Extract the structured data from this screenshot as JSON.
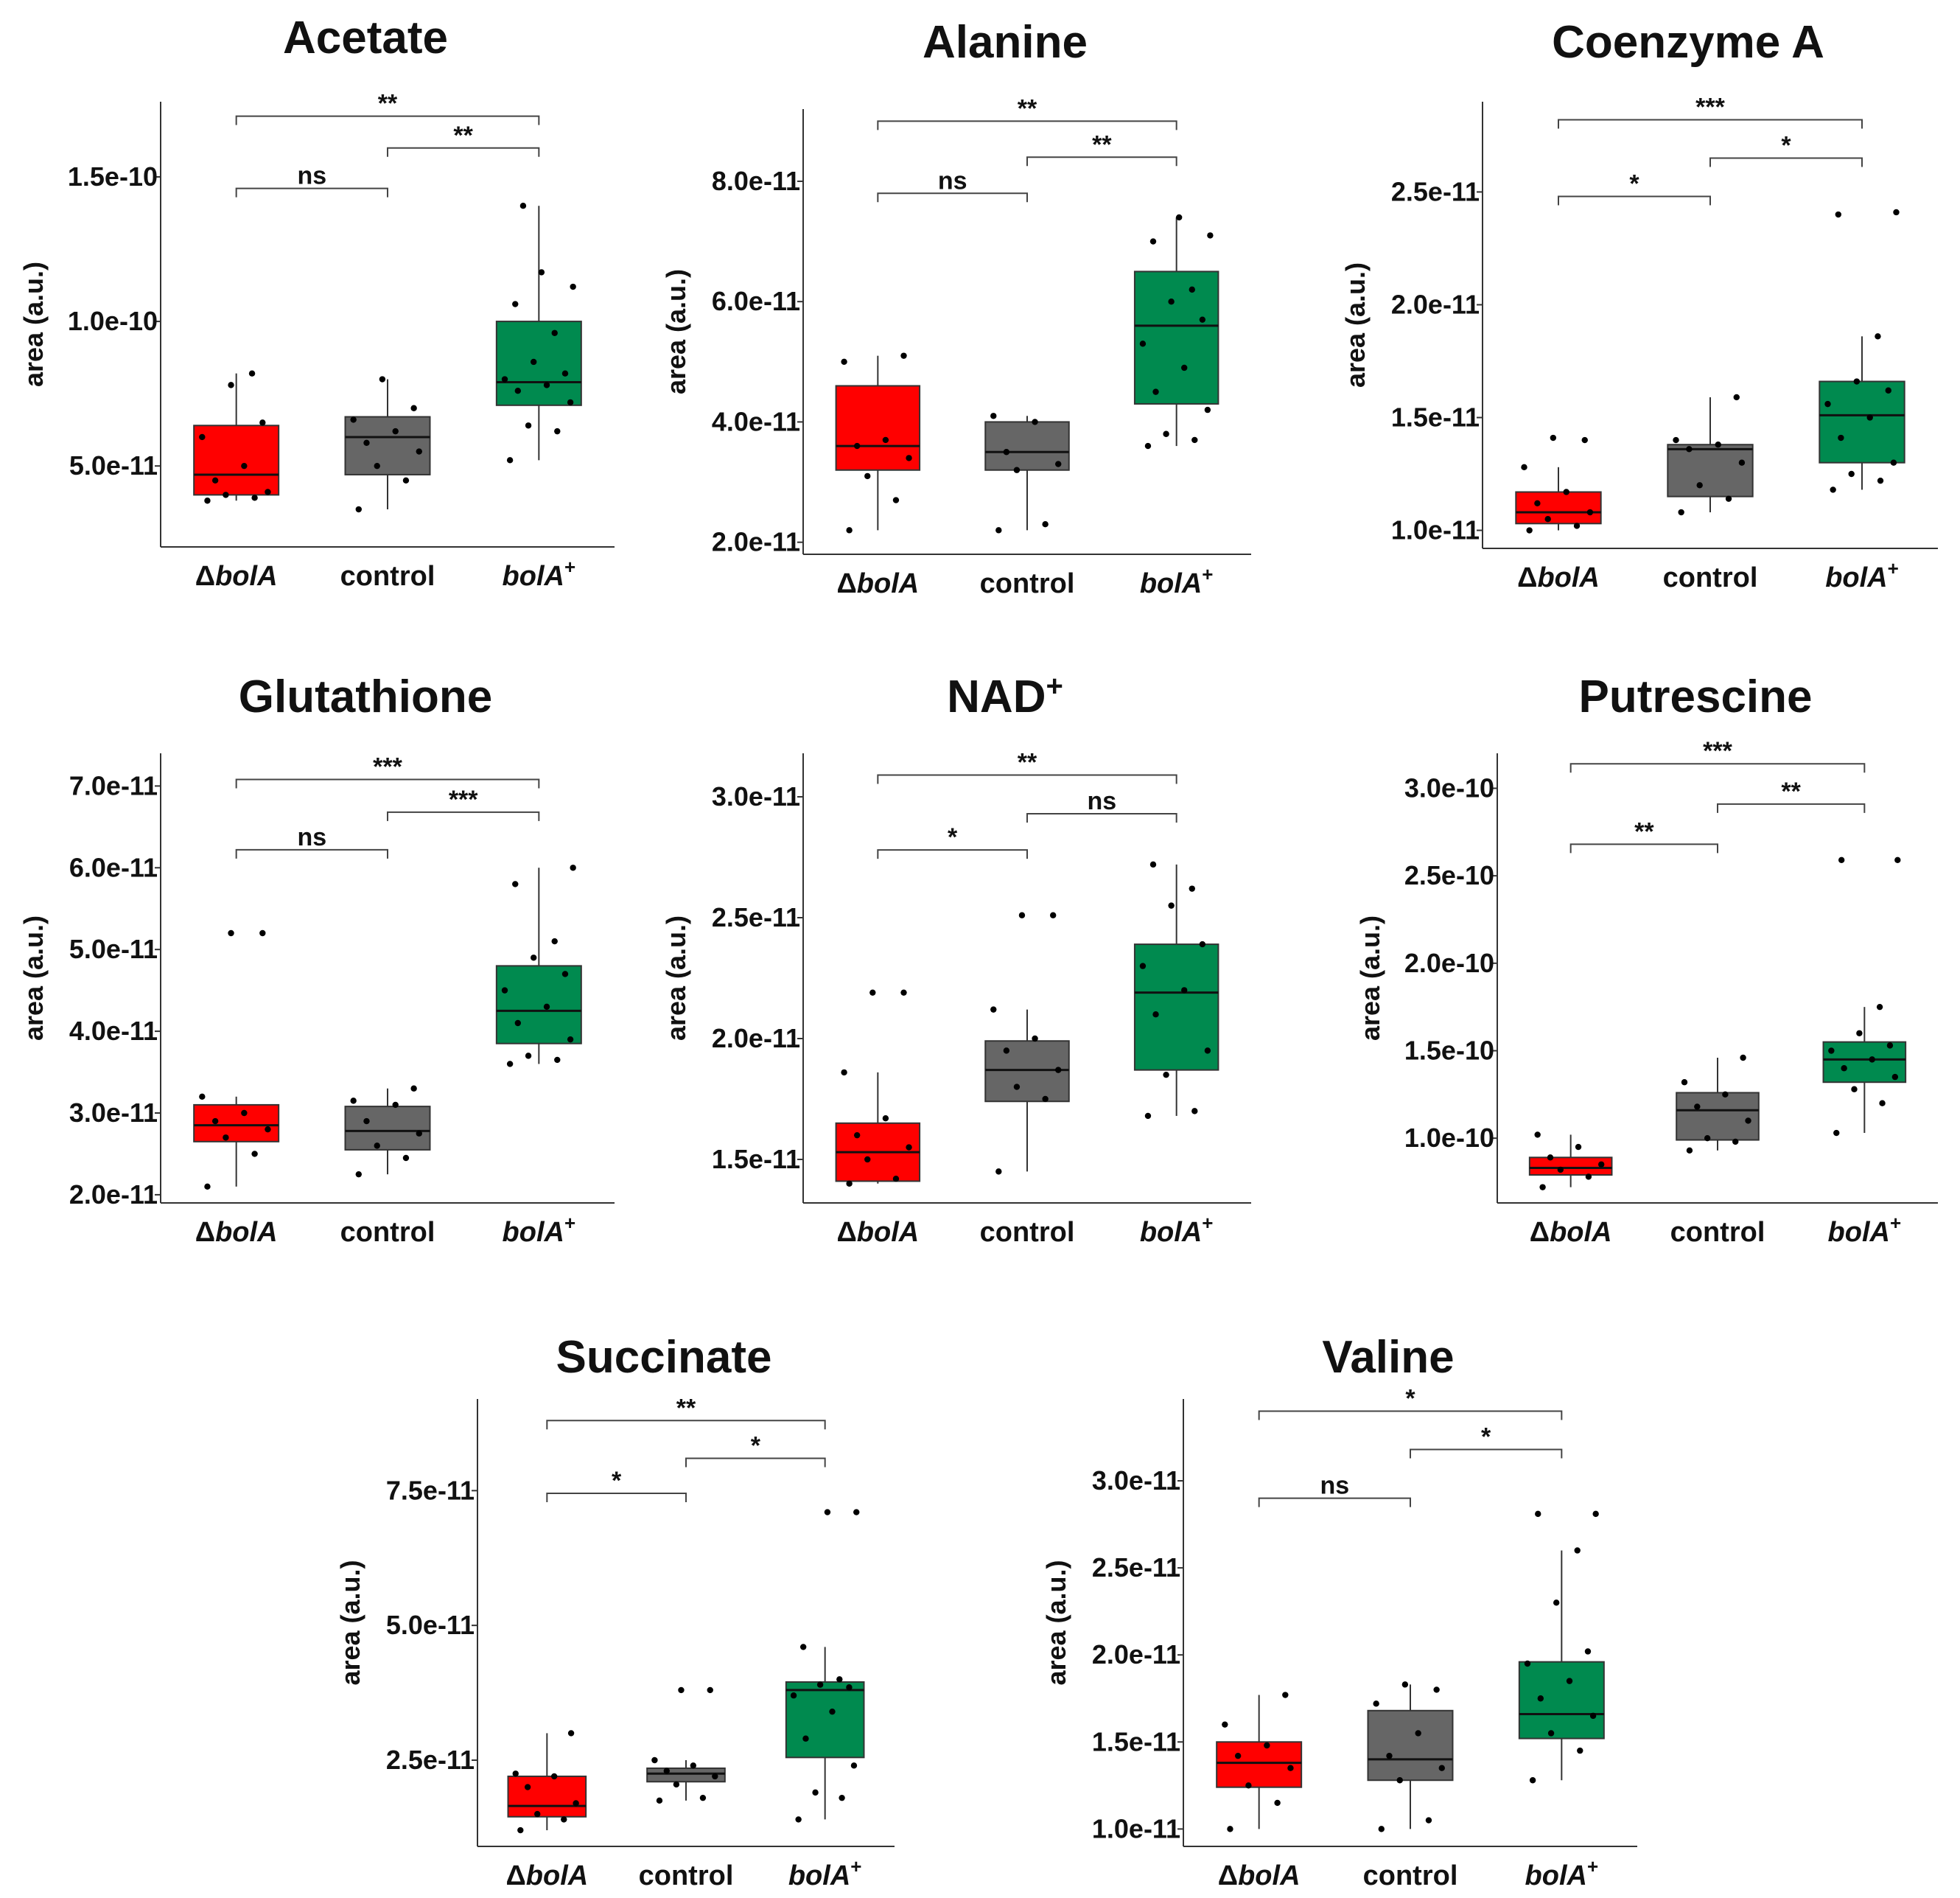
{
  "colors": {
    "deltaBolA": "#ff0000",
    "control": "#666666",
    "bolAplus": "#008a4f"
  },
  "chart_data": [
    {
      "type": "boxplot",
      "title": "Acetate",
      "ylabel": "area (a.u.)",
      "categories": [
        "ΔbolA",
        "control",
        "bolA+"
      ],
      "yticks": [
        5e-11,
        1e-10,
        1.5e-10
      ],
      "ytick_labels": [
        "5.0e-11",
        "1.0e-10",
        "1.5e-10"
      ],
      "ylim": [
        2.2e-11,
        1.76e-10
      ],
      "boxes": [
        {
          "whislo": 3.8e-11,
          "q1": 4e-11,
          "med": 4.7e-11,
          "q3": 6.4e-11,
          "whishi": 8.2e-11,
          "points": [
            3.8e-11,
            3.9e-11,
            4e-11,
            4.1e-11,
            4.5e-11,
            5e-11,
            6e-11,
            6.5e-11,
            7.8e-11,
            8.2e-11
          ]
        },
        {
          "whislo": 3.5e-11,
          "q1": 4.7e-11,
          "med": 6e-11,
          "q3": 6.7e-11,
          "whishi": 8e-11,
          "points": [
            3.5e-11,
            4.5e-11,
            5e-11,
            5.5e-11,
            5.8e-11,
            6.2e-11,
            6.6e-11,
            7e-11,
            8e-11
          ]
        },
        {
          "whislo": 5.2e-11,
          "q1": 7.1e-11,
          "med": 7.9e-11,
          "q3": 1e-10,
          "whishi": 1.4e-10,
          "points": [
            5.2e-11,
            6.2e-11,
            6.4e-11,
            7.2e-11,
            7.6e-11,
            7.8e-11,
            8e-11,
            8.2e-11,
            8.6e-11,
            9.6e-11,
            1.06e-10,
            1.12e-10,
            1.17e-10,
            1.4e-10
          ]
        }
      ],
      "comparisons": [
        {
          "groups": [
            "ΔbolA",
            "control"
          ],
          "label": "ns",
          "y": 1.46e-10
        },
        {
          "groups": [
            "control",
            "bolA+"
          ],
          "label": "**",
          "y": 1.6e-10
        },
        {
          "groups": [
            "ΔbolA",
            "bolA+"
          ],
          "label": "**",
          "y": 1.71e-10
        }
      ]
    },
    {
      "type": "boxplot",
      "title": "Alanine",
      "ylabel": "area (a.u.)",
      "categories": [
        "ΔbolA",
        "control",
        "bolA+"
      ],
      "yticks": [
        2e-11,
        4e-11,
        6e-11,
        8e-11
      ],
      "ytick_labels": [
        "2.0e-11",
        "4.0e-11",
        "6.0e-11",
        "8.0e-11"
      ],
      "ylim": [
        1.8e-11,
        9.2e-11
      ],
      "boxes": [
        {
          "whislo": 2.2e-11,
          "q1": 3.2e-11,
          "med": 3.6e-11,
          "q3": 4.6e-11,
          "whishi": 5.1e-11,
          "points": [
            2.2e-11,
            2.7e-11,
            3.1e-11,
            3.4e-11,
            3.6e-11,
            3.7e-11,
            5e-11,
            5.1e-11
          ]
        },
        {
          "whislo": 2.2e-11,
          "q1": 3.2e-11,
          "med": 3.5e-11,
          "q3": 4e-11,
          "whishi": 4.1e-11,
          "points": [
            2.2e-11,
            2.3e-11,
            3.2e-11,
            3.3e-11,
            3.5e-11,
            4e-11,
            4.1e-11
          ]
        },
        {
          "whislo": 3.6e-11,
          "q1": 4.3e-11,
          "med": 5.6e-11,
          "q3": 6.5e-11,
          "whishi": 7.4e-11,
          "points": [
            3.6e-11,
            3.7e-11,
            3.8e-11,
            4.2e-11,
            4.5e-11,
            4.9e-11,
            5.3e-11,
            5.7e-11,
            6e-11,
            6.2e-11,
            7e-11,
            7.1e-11,
            7.4e-11
          ]
        }
      ],
      "comparisons": [
        {
          "groups": [
            "ΔbolA",
            "control"
          ],
          "label": "ns",
          "y": 7.8e-11
        },
        {
          "groups": [
            "control",
            "bolA+"
          ],
          "label": "**",
          "y": 8.4e-11
        },
        {
          "groups": [
            "ΔbolA",
            "bolA+"
          ],
          "label": "**",
          "y": 9e-11
        }
      ]
    },
    {
      "type": "boxplot",
      "title": "Coenzyme A",
      "ylabel": "area (a.u.)",
      "categories": [
        "ΔbolA",
        "control",
        "bolA+"
      ],
      "yticks": [
        1e-11,
        1.5e-11,
        2e-11,
        2.5e-11
      ],
      "ytick_labels": [
        "1.0e-11",
        "1.5e-11",
        "2.0e-11",
        "2.5e-11"
      ],
      "ylim": [
        9.2e-12,
        2.9e-11
      ],
      "boxes": [
        {
          "whislo": 1e-11,
          "q1": 1.03e-11,
          "med": 1.08e-11,
          "q3": 1.17e-11,
          "whishi": 1.28e-11,
          "points": [
            1e-11,
            1.02e-11,
            1.05e-11,
            1.08e-11,
            1.12e-11,
            1.17e-11,
            1.28e-11,
            1.4e-11,
            1.41e-11
          ]
        },
        {
          "whislo": 1.08e-11,
          "q1": 1.15e-11,
          "med": 1.36e-11,
          "q3": 1.38e-11,
          "whishi": 1.59e-11,
          "points": [
            1.08e-11,
            1.14e-11,
            1.2e-11,
            1.3e-11,
            1.36e-11,
            1.38e-11,
            1.4e-11,
            1.59e-11
          ]
        },
        {
          "whislo": 1.18e-11,
          "q1": 1.3e-11,
          "med": 1.51e-11,
          "q3": 1.66e-11,
          "whishi": 1.86e-11,
          "points": [
            1.18e-11,
            1.22e-11,
            1.25e-11,
            1.3e-11,
            1.41e-11,
            1.5e-11,
            1.56e-11,
            1.62e-11,
            1.66e-11,
            1.86e-11,
            2.4e-11,
            2.41e-11
          ]
        }
      ],
      "comparisons": [
        {
          "groups": [
            "ΔbolA",
            "control"
          ],
          "label": "*",
          "y": 2.48e-11
        },
        {
          "groups": [
            "control",
            "bolA+"
          ],
          "label": "*",
          "y": 2.65e-11
        },
        {
          "groups": [
            "ΔbolA",
            "bolA+"
          ],
          "label": "***",
          "y": 2.82e-11
        }
      ]
    },
    {
      "type": "boxplot",
      "title": "Glutathione",
      "ylabel": "area (a.u.)",
      "categories": [
        "ΔbolA",
        "control",
        "bolA+"
      ],
      "yticks": [
        2e-11,
        3e-11,
        4e-11,
        5e-11,
        6e-11,
        7e-11
      ],
      "ytick_labels": [
        "2.0e-11",
        "3.0e-11",
        "4.0e-11",
        "5.0e-11",
        "6.0e-11",
        "7.0e-11"
      ],
      "ylim": [
        1.9e-11,
        7.4e-11
      ],
      "boxes": [
        {
          "whislo": 2.1e-11,
          "q1": 2.65e-11,
          "med": 2.85e-11,
          "q3": 3.1e-11,
          "whishi": 3.2e-11,
          "points": [
            2.1e-11,
            2.5e-11,
            2.7e-11,
            2.8e-11,
            2.9e-11,
            3e-11,
            3.2e-11,
            5.2e-11,
            5.2e-11
          ]
        },
        {
          "whislo": 2.25e-11,
          "q1": 2.55e-11,
          "med": 2.78e-11,
          "q3": 3.08e-11,
          "whishi": 3.3e-11,
          "points": [
            2.25e-11,
            2.45e-11,
            2.6e-11,
            2.75e-11,
            2.9e-11,
            3.1e-11,
            3.15e-11,
            3.3e-11
          ]
        },
        {
          "whislo": 3.6e-11,
          "q1": 3.85e-11,
          "med": 4.25e-11,
          "q3": 4.8e-11,
          "whishi": 6e-11,
          "points": [
            3.6e-11,
            3.65e-11,
            3.7e-11,
            3.9e-11,
            4.1e-11,
            4.3e-11,
            4.5e-11,
            4.7e-11,
            4.9e-11,
            5.1e-11,
            5.8e-11,
            6e-11
          ]
        }
      ],
      "comparisons": [
        {
          "groups": [
            "ΔbolA",
            "control"
          ],
          "label": "ns",
          "y": 6.22e-11
        },
        {
          "groups": [
            "control",
            "bolA+"
          ],
          "label": "***",
          "y": 6.68e-11
        },
        {
          "groups": [
            "ΔbolA",
            "bolA+"
          ],
          "label": "***",
          "y": 7.08e-11
        }
      ]
    },
    {
      "type": "boxplot",
      "title": "NAD+",
      "ylabel": "area (a.u.)",
      "categories": [
        "ΔbolA",
        "control",
        "bolA+"
      ],
      "yticks": [
        1.5e-11,
        2e-11,
        2.5e-11,
        3e-11
      ],
      "ytick_labels": [
        "1.5e-11",
        "2.0e-11",
        "2.5e-11",
        "3.0e-11"
      ],
      "ylim": [
        1.32e-11,
        3.18e-11
      ],
      "boxes": [
        {
          "whislo": 1.4e-11,
          "q1": 1.41e-11,
          "med": 1.53e-11,
          "q3": 1.65e-11,
          "whishi": 1.86e-11,
          "points": [
            1.4e-11,
            1.42e-11,
            1.5e-11,
            1.55e-11,
            1.6e-11,
            1.67e-11,
            1.86e-11,
            2.19e-11,
            2.19e-11
          ]
        },
        {
          "whislo": 1.45e-11,
          "q1": 1.74e-11,
          "med": 1.87e-11,
          "q3": 1.99e-11,
          "whishi": 2.12e-11,
          "points": [
            1.45e-11,
            1.75e-11,
            1.8e-11,
            1.87e-11,
            1.95e-11,
            2e-11,
            2.12e-11,
            2.51e-11,
            2.51e-11
          ]
        },
        {
          "whislo": 1.68e-11,
          "q1": 1.87e-11,
          "med": 2.19e-11,
          "q3": 2.39e-11,
          "whishi": 2.72e-11,
          "points": [
            1.68e-11,
            1.7e-11,
            1.85e-11,
            1.95e-11,
            2.1e-11,
            2.2e-11,
            2.3e-11,
            2.39e-11,
            2.55e-11,
            2.62e-11,
            2.72e-11
          ]
        }
      ],
      "comparisons": [
        {
          "groups": [
            "ΔbolA",
            "control"
          ],
          "label": "*",
          "y": 2.78e-11
        },
        {
          "groups": [
            "control",
            "bolA+"
          ],
          "label": "ns",
          "y": 2.93e-11
        },
        {
          "groups": [
            "ΔbolA",
            "bolA+"
          ],
          "label": "**",
          "y": 3.09e-11
        }
      ]
    },
    {
      "type": "boxplot",
      "title": "Putrescine",
      "ylabel": "area (a.u.)",
      "categories": [
        "ΔbolA",
        "control",
        "bolA+"
      ],
      "yticks": [
        1e-10,
        1.5e-10,
        2e-10,
        2.5e-10,
        3e-10
      ],
      "ytick_labels": [
        "1.0e-10",
        "1.5e-10",
        "2.0e-10",
        "2.5e-10",
        "3.0e-10"
      ],
      "ylim": [
        6.3e-11,
        3.2e-10
      ],
      "boxes": [
        {
          "whislo": 7.2e-11,
          "q1": 7.9e-11,
          "med": 8.3e-11,
          "q3": 8.9e-11,
          "whishi": 1.02e-10,
          "points": [
            7.2e-11,
            7.8e-11,
            8.2e-11,
            8.5e-11,
            8.9e-11,
            9.5e-11,
            1.02e-10
          ]
        },
        {
          "whislo": 9.3e-11,
          "q1": 9.9e-11,
          "med": 1.16e-10,
          "q3": 1.26e-10,
          "whishi": 1.46e-10,
          "points": [
            9.3e-11,
            9.8e-11,
            1e-10,
            1.1e-10,
            1.18e-10,
            1.25e-10,
            1.32e-10,
            1.46e-10
          ]
        },
        {
          "whislo": 1.03e-10,
          "q1": 1.32e-10,
          "med": 1.45e-10,
          "q3": 1.55e-10,
          "whishi": 1.75e-10,
          "points": [
            1.03e-10,
            1.2e-10,
            1.28e-10,
            1.35e-10,
            1.4e-10,
            1.45e-10,
            1.5e-10,
            1.53e-10,
            1.6e-10,
            1.75e-10,
            2.59e-10,
            2.59e-10
          ]
        }
      ],
      "comparisons": [
        {
          "groups": [
            "ΔbolA",
            "control"
          ],
          "label": "**",
          "y": 2.68e-10
        },
        {
          "groups": [
            "control",
            "bolA+"
          ],
          "label": "**",
          "y": 2.91e-10
        },
        {
          "groups": [
            "ΔbolA",
            "bolA+"
          ],
          "label": "***",
          "y": 3.14e-10
        }
      ]
    },
    {
      "type": "boxplot",
      "title": "Succinate",
      "ylabel": "area (a.u.)",
      "categories": [
        "ΔbolA",
        "control",
        "bolA+"
      ],
      "yticks": [
        2.5e-11,
        5e-11,
        7.5e-11
      ],
      "ytick_labels": [
        "2.5e-11",
        "5.0e-11",
        "7.5e-11"
      ],
      "ylim": [
        9e-12,
        9.2e-11
      ],
      "boxes": [
        {
          "whislo": 1.2e-11,
          "q1": 1.45e-11,
          "med": 1.65e-11,
          "q3": 2.2e-11,
          "whishi": 3e-11,
          "points": [
            1.2e-11,
            1.4e-11,
            1.5e-11,
            1.7e-11,
            2e-11,
            2.2e-11,
            2.25e-11,
            3e-11
          ]
        },
        {
          "whislo": 1.75e-11,
          "q1": 2.1e-11,
          "med": 2.25e-11,
          "q3": 2.35e-11,
          "whishi": 2.5e-11,
          "points": [
            1.75e-11,
            1.8e-11,
            2.05e-11,
            2.2e-11,
            2.3e-11,
            2.4e-11,
            2.5e-11,
            3.8e-11,
            3.8e-11
          ]
        },
        {
          "whislo": 1.4e-11,
          "q1": 2.55e-11,
          "med": 3.8e-11,
          "q3": 3.95e-11,
          "whishi": 4.6e-11,
          "points": [
            1.4e-11,
            1.8e-11,
            1.9e-11,
            2.4e-11,
            2.9e-11,
            3.4e-11,
            3.7e-11,
            3.85e-11,
            3.9e-11,
            4e-11,
            4.6e-11,
            7.1e-11,
            7.1e-11
          ]
        }
      ],
      "comparisons": [
        {
          "groups": [
            "ΔbolA",
            "control"
          ],
          "label": "*",
          "y": 7.45e-11
        },
        {
          "groups": [
            "control",
            "bolA+"
          ],
          "label": "*",
          "y": 8.1e-11
        },
        {
          "groups": [
            "ΔbolA",
            "bolA+"
          ],
          "label": "**",
          "y": 8.8e-11
        }
      ]
    },
    {
      "type": "boxplot",
      "title": "Valine",
      "ylabel": "area (a.u.)",
      "categories": [
        "ΔbolA",
        "control",
        "bolA+"
      ],
      "yticks": [
        1e-11,
        1.5e-11,
        2e-11,
        2.5e-11,
        3e-11
      ],
      "ytick_labels": [
        "1.0e-11",
        "1.5e-11",
        "2.0e-11",
        "2.5e-11",
        "3.0e-11"
      ],
      "ylim": [
        9e-12,
        3.47e-11
      ],
      "boxes": [
        {
          "whislo": 1e-11,
          "q1": 1.24e-11,
          "med": 1.38e-11,
          "q3": 1.5e-11,
          "whishi": 1.77e-11,
          "points": [
            1e-11,
            1.15e-11,
            1.25e-11,
            1.35e-11,
            1.42e-11,
            1.48e-11,
            1.6e-11,
            1.77e-11
          ]
        },
        {
          "whislo": 1e-11,
          "q1": 1.28e-11,
          "med": 1.4e-11,
          "q3": 1.68e-11,
          "whishi": 1.83e-11,
          "points": [
            1e-11,
            1.05e-11,
            1.28e-11,
            1.35e-11,
            1.42e-11,
            1.55e-11,
            1.72e-11,
            1.8e-11,
            1.83e-11
          ]
        },
        {
          "whislo": 1.28e-11,
          "q1": 1.52e-11,
          "med": 1.66e-11,
          "q3": 1.96e-11,
          "whishi": 2.6e-11,
          "points": [
            1.28e-11,
            1.45e-11,
            1.55e-11,
            1.65e-11,
            1.75e-11,
            1.85e-11,
            1.95e-11,
            2.02e-11,
            2.3e-11,
            2.6e-11,
            2.81e-11,
            2.81e-11
          ]
        }
      ],
      "comparisons": [
        {
          "groups": [
            "ΔbolA",
            "control"
          ],
          "label": "ns",
          "y": 2.9e-11
        },
        {
          "groups": [
            "control",
            "bolA+"
          ],
          "label": "*",
          "y": 3.18e-11
        },
        {
          "groups": [
            "ΔbolA",
            "bolA+"
          ],
          "label": "*",
          "y": 3.4e-11
        }
      ]
    }
  ]
}
